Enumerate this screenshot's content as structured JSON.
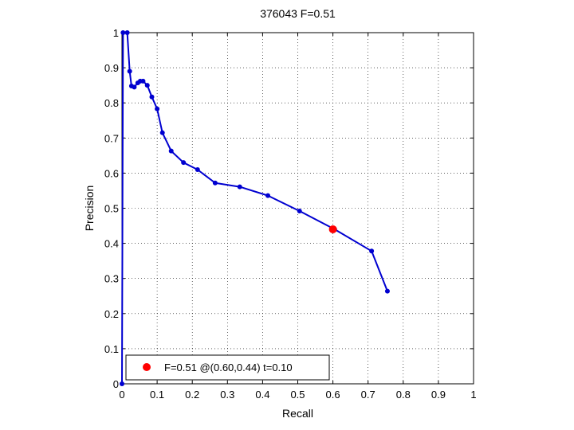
{
  "chart_data": {
    "type": "line",
    "title": "376043 F=0.51",
    "xlabel": "Recall",
    "ylabel": "Precision",
    "xlim": [
      0,
      1
    ],
    "ylim": [
      0,
      1
    ],
    "grid": true,
    "xticks": [
      "0",
      "0.1",
      "0.2",
      "0.3",
      "0.4",
      "0.5",
      "0.6",
      "0.7",
      "0.8",
      "0.9",
      "1"
    ],
    "yticks": [
      "0",
      "0.1",
      "0.2",
      "0.3",
      "0.4",
      "0.5",
      "0.6",
      "0.7",
      "0.8",
      "0.9",
      "1"
    ],
    "series": [
      {
        "color": "#0000d0",
        "points": [
          [
            0.0,
            0.0
          ],
          [
            0.003,
            1.0
          ],
          [
            0.015,
            1.0
          ],
          [
            0.022,
            0.89
          ],
          [
            0.027,
            0.848
          ],
          [
            0.035,
            0.845
          ],
          [
            0.045,
            0.857
          ],
          [
            0.052,
            0.862
          ],
          [
            0.06,
            0.862
          ],
          [
            0.072,
            0.85
          ],
          [
            0.085,
            0.817
          ],
          [
            0.1,
            0.783
          ],
          [
            0.115,
            0.715
          ],
          [
            0.14,
            0.663
          ],
          [
            0.175,
            0.63
          ],
          [
            0.215,
            0.61
          ],
          [
            0.265,
            0.572
          ],
          [
            0.335,
            0.561
          ],
          [
            0.415,
            0.536
          ],
          [
            0.505,
            0.492
          ],
          [
            0.605,
            0.44
          ],
          [
            0.71,
            0.378
          ],
          [
            0.755,
            0.264
          ]
        ]
      }
    ],
    "highlight": {
      "recall": 0.6,
      "precision": 0.44,
      "color": "#ff0000"
    },
    "legend": {
      "position": "bottom-left",
      "label": "F=0.51 @(0.60,0.44) t=0.10"
    }
  }
}
